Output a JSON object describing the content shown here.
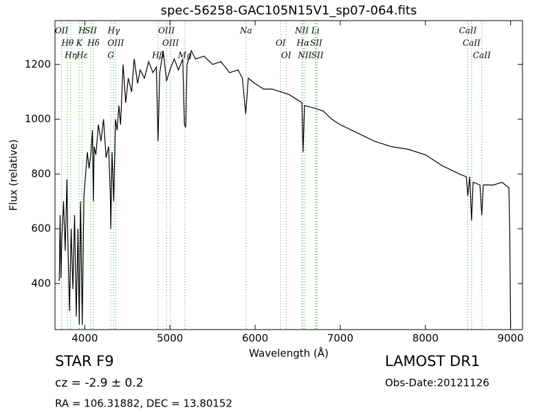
{
  "chart_data": {
    "type": "line",
    "title": "spec-56258-GAC105N15V1_sp07-064.fits",
    "x_label": "Wavelength (Å)",
    "y_label": "Flux (relative)",
    "xlim": [
      3650,
      9140
    ],
    "ylim": [
      232,
      1360
    ],
    "xticks": [
      4000,
      5000,
      6000,
      7000,
      8000,
      9000
    ],
    "yticks": [
      400,
      600,
      800,
      1000,
      1200
    ],
    "grid": false,
    "series": [
      {
        "color": "#000000",
        "x": [
          3700,
          3710,
          3720,
          3730,
          3750,
          3770,
          3790,
          3800,
          3820,
          3840,
          3860,
          3880,
          3900,
          3920,
          3935,
          3950,
          3970,
          3990,
          4010,
          4030,
          4050,
          4070,
          4090,
          4100,
          4110,
          4130,
          4160,
          4190,
          4220,
          4250,
          4280,
          4300,
          4305,
          4320,
          4340,
          4360,
          4380,
          4400,
          4420,
          4450,
          4480,
          4510,
          4550,
          4580,
          4620,
          4650,
          4700,
          4750,
          4800,
          4840,
          4860,
          4880,
          4920,
          4960,
          5000,
          5050,
          5100,
          5150,
          5170,
          5185,
          5200,
          5250,
          5300,
          5400,
          5500,
          5600,
          5700,
          5800,
          5850,
          5890,
          5920,
          6000,
          6100,
          6200,
          6300,
          6400,
          6500,
          6550,
          6563,
          6580,
          6700,
          6800,
          6900,
          7000,
          7200,
          7400,
          7600,
          7800,
          8000,
          8200,
          8400,
          8480,
          8498,
          8520,
          8542,
          8560,
          8640,
          8662,
          8680,
          8800,
          8900,
          8980,
          8990,
          9000
        ],
        "values": [
          410,
          650,
          420,
          560,
          700,
          520,
          780,
          580,
          300,
          600,
          380,
          650,
          280,
          600,
          250,
          700,
          250,
          720,
          800,
          880,
          820,
          870,
          960,
          700,
          900,
          870,
          980,
          920,
          1000,
          860,
          900,
          720,
          600,
          880,
          700,
          1000,
          960,
          1050,
          980,
          1200,
          1060,
          1150,
          1100,
          1220,
          1130,
          1180,
          1150,
          1210,
          1170,
          1190,
          920,
          1170,
          1250,
          1140,
          1180,
          1220,
          1180,
          1220,
          980,
          970,
          1200,
          1250,
          1220,
          1230,
          1200,
          1210,
          1170,
          1180,
          1150,
          1020,
          1150,
          1130,
          1110,
          1110,
          1100,
          1090,
          1070,
          1060,
          880,
          1050,
          1040,
          1030,
          1000,
          980,
          950,
          920,
          900,
          890,
          870,
          830,
          800,
          790,
          720,
          790,
          630,
          770,
          760,
          650,
          760,
          760,
          770,
          750,
          600,
          240
        ]
      }
    ],
    "lines_color": "#33aa33",
    "lines": [
      {
        "label": "OII",
        "x": 3727
      },
      {
        "label": "Hθ",
        "x": 3798
      },
      {
        "label": "Hη",
        "x": 3835
      },
      {
        "label": "H",
        "x": 3968
      },
      {
        "label": "K",
        "x": 3934
      },
      {
        "label": "Hε",
        "x": 3970
      },
      {
        "label": "SII",
        "x": 4070
      },
      {
        "label": "Hδ",
        "x": 4102
      },
      {
        "label": "G",
        "x": 4304
      },
      {
        "label": "Hγ",
        "x": 4340
      },
      {
        "label": "OIII",
        "x": 4363
      },
      {
        "label": "Hβ",
        "x": 4861
      },
      {
        "label": "OIII",
        "x": 4959
      },
      {
        "label": "OIII",
        "x": 5007
      },
      {
        "label": "Mg",
        "x": 5175
      },
      {
        "label": "Na",
        "x": 5893
      },
      {
        "label": "OI",
        "x": 6300
      },
      {
        "label": "OI",
        "x": 6364
      },
      {
        "label": "NII",
        "x": 6548
      },
      {
        "label": "Hα",
        "x": 6563
      },
      {
        "label": "NII",
        "x": 6583
      },
      {
        "label": "Li",
        "x": 6708
      },
      {
        "label": "SII",
        "x": 6717
      },
      {
        "label": "SII",
        "x": 6731
      },
      {
        "label": "CaII",
        "x": 8498
      },
      {
        "label": "CaII",
        "x": 8542
      },
      {
        "label": "CaII",
        "x": 8662
      }
    ],
    "annotations": {
      "object": "STAR   F9",
      "cz": "cz = -2.9 ± 0.2",
      "coords": "RA = 106.31882, DEC = 13.80152",
      "survey": "LAMOST DR1",
      "date": "Obs-Date:20121126"
    }
  }
}
